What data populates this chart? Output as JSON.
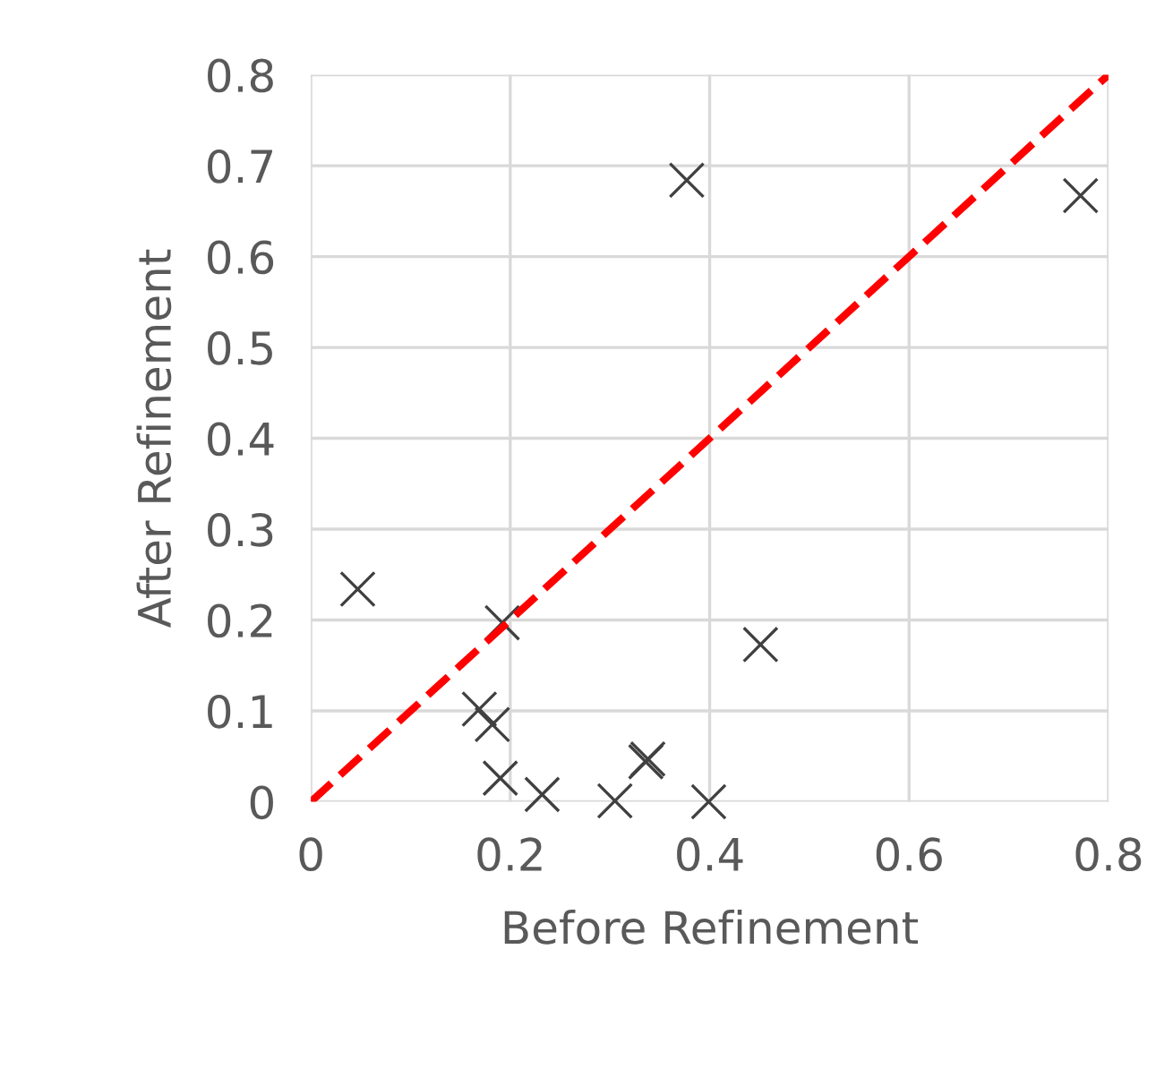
{
  "chart_data": {
    "type": "scatter",
    "xlabel": "Before Refinement",
    "ylabel": "After Refinement",
    "xlim": [
      0,
      0.8
    ],
    "ylim": [
      0,
      0.8
    ],
    "xticks": [
      0,
      0.2,
      0.4,
      0.6,
      0.8
    ],
    "yticks": [
      0,
      0.1,
      0.2,
      0.3,
      0.4,
      0.5,
      0.6,
      0.7,
      0.8
    ],
    "grid": true,
    "legend": false,
    "series": [
      {
        "marker": "cross",
        "color": "#404040",
        "x": [
          0.047,
          0.192,
          0.451,
          0.169,
          0.182,
          0.19,
          0.232,
          0.305,
          0.336,
          0.338,
          0.399,
          0.377,
          0.772
        ],
        "values": [
          0.234,
          0.197,
          0.173,
          0.102,
          0.085,
          0.026,
          0.008,
          0.001,
          0.044,
          0.047,
          0.0,
          0.684,
          0.667
        ]
      },
      {
        "type": "line",
        "marker": "none",
        "line_style": "dashed",
        "color": "#ff0000",
        "x": [
          0,
          0.8
        ],
        "values": [
          0,
          0.8
        ]
      }
    ]
  }
}
